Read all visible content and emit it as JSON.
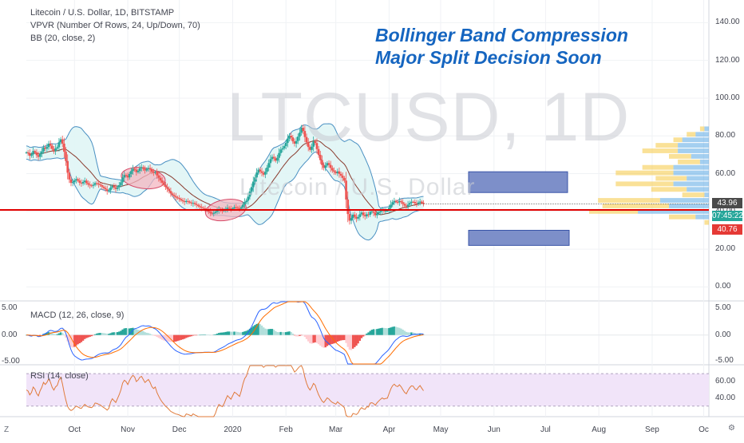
{
  "header": {
    "symbol_line": "Litecoin / U.S. Dollar, 1D, BITSTAMP",
    "vpvr_line": "VPVR (Number Of Rows, 24, Up/Down, 70)",
    "bb_line": "BB (20, close, 2)"
  },
  "annotation": {
    "line1": "Bollinger Band Compression",
    "line2": "Major Split Decision Soon"
  },
  "watermark": {
    "ticker": "LTCUSD, 1D",
    "name": "Litecoin / U.S. Dollar"
  },
  "panes": {
    "macd_label": "MACD (12, 26, close, 9)",
    "rsi_label": "RSI (14, close)"
  },
  "price_tags": {
    "last": "43.96",
    "countdown": "07:45:22",
    "support": "40.76"
  },
  "corners": {
    "left": "Z",
    "right": "⚙"
  },
  "colors": {
    "up": "#26a69a",
    "down": "#ef5350",
    "support_line": "#e00000",
    "band_fill": "#e0f5f5",
    "band_line": "#4a90c2",
    "basis": "#8a3b2e",
    "ellipse_fill": "#f3b6c0",
    "ellipse_stroke": "#d64b68",
    "target_box": "#7d8fc9",
    "vp_up": "#5aa7e4",
    "vp_down": "#f5c842",
    "macd_line": "#2962ff",
    "signal_line": "#ff6d00",
    "rsi_line": "#e07a3a",
    "rsi_band": "#f1e4f9",
    "countdown_tag": "#26a69a",
    "last_tag": "#4a4a4a",
    "support_tag": "#e53935",
    "annotation_text": "#1565c0"
  },
  "chart_data": [
    {
      "type": "candlestick",
      "title": "Litecoin / U.S. Dollar, 1D, BITSTAMP",
      "y_axis_ticks": [
        0,
        20,
        40,
        60,
        80,
        100,
        120,
        140
      ],
      "y_axis_labels": [
        "0.00",
        "20.00",
        "40.00",
        "60.00",
        "80.00",
        "100.00",
        "120.00",
        "140.00"
      ],
      "ylim": [
        -7,
        152
      ],
      "x_axis_labels": [
        "Oct",
        "Nov",
        "Dec",
        "2020",
        "Feb",
        "Mar",
        "Apr",
        "May",
        "Jun",
        "Jul",
        "Aug",
        "Sep",
        "Oc"
      ],
      "xlim": [
        "2019-09-03",
        "2020-10-04"
      ],
      "month_starts": [
        "2019-10-01",
        "2019-11-01",
        "2019-12-01",
        "2020-01-01",
        "2020-02-01",
        "2020-03-01",
        "2020-04-01",
        "2020-05-01",
        "2020-06-01",
        "2020-07-01",
        "2020-08-01",
        "2020-09-01",
        "2020-10-01"
      ],
      "data_start_date": "2019-09-03",
      "close": [
        71.2,
        70.8,
        69.5,
        70.2,
        72.0,
        71.3,
        69.8,
        68.9,
        70.5,
        71.8,
        73.9,
        73.2,
        74.1,
        75.9,
        74.8,
        73.1,
        72.0,
        73.3,
        74.0,
        76.6,
        78.2,
        75.9,
        71.6,
        66.7,
        60.5,
        56.9,
        55.1,
        55.5,
        56.4,
        57.1,
        56.3,
        55.2,
        54.8,
        55.6,
        56.3,
        55.0,
        54.2,
        53.8,
        53.6,
        54.1,
        55.0,
        54.8,
        54.3,
        53.9,
        53.1,
        52.4,
        51.7,
        50.8,
        51.2,
        52.6,
        53.5,
        52.7,
        51.9,
        52.8,
        53.9,
        55.4,
        58.0,
        59.3,
        58.9,
        58.0,
        59.8,
        61.4,
        62.6,
        62.1,
        60.8,
        61.5,
        62.9,
        63.4,
        62.6,
        61.7,
        62.4,
        63.0,
        62.2,
        61.0,
        60.4,
        60.9,
        59.1,
        57.8,
        56.4,
        55.2,
        54.1,
        52.9,
        52.0,
        50.8,
        49.5,
        48.7,
        48.0,
        47.4,
        47.1,
        46.6,
        45.9,
        45.4,
        45.0,
        45.5,
        45.2,
        44.7,
        44.2,
        44.5,
        43.9,
        43.4,
        42.8,
        42.3,
        41.9,
        41.6,
        41.2,
        40.5,
        39.9,
        39.3,
        38.8,
        39.2,
        39.8,
        40.5,
        41.0,
        40.6,
        40.3,
        40.7,
        41.3,
        41.9,
        41.5,
        41.1,
        41.6,
        42.2,
        42.0,
        41.7,
        41.4,
        42.2,
        43.6,
        44.9,
        45.7,
        47.8,
        50.6,
        52.9,
        55.8,
        58.0,
        60.6,
        62.1,
        61.2,
        60.4,
        59.5,
        61.0,
        63.2,
        65.6,
        67.7,
        68.9,
        68.1,
        66.9,
        68.4,
        70.9,
        72.8,
        73.4,
        74.6,
        76.3,
        78.5,
        80.1,
        79.2,
        77.1,
        75.9,
        77.3,
        79.6,
        81.7,
        84.3,
        82.6,
        79.4,
        76.6,
        74.1,
        72.6,
        74.3,
        77.1,
        76.2,
        73.0,
        70.0,
        67.2,
        64.6,
        63.1,
        64.3,
        65.6,
        64.6,
        63.0,
        61.7,
        61.0,
        60.2,
        61.2,
        59.9,
        58.9,
        57.7,
        56.3,
        46.3,
        38.6,
        35.1,
        36.5,
        38.3,
        37.1,
        36.2,
        37.0,
        38.5,
        39.4,
        38.0,
        37.4,
        38.5,
        38.2,
        39.8,
        40.0,
        39.3,
        38.0,
        38.9,
        39.6,
        40.2,
        40.7,
        40.1,
        40.3,
        40.4,
        41.9,
        43.6,
        44.9,
        45.6,
        45.0,
        44.8,
        45.5,
        44.9,
        44.0,
        43.1,
        42.6,
        43.6,
        44.5,
        45.1,
        45.0,
        44.3,
        44.0,
        44.7,
        45.2,
        44.6,
        43.96
      ]
    },
    {
      "type": "line",
      "title": "MACD (12, 26, close, 9)",
      "y_axis_ticks": [
        -5,
        0,
        5
      ],
      "y_axis_labels": [
        "-5.00",
        "0.00",
        "5.00"
      ],
      "ylim": [
        -5.4,
        6.2
      ]
    },
    {
      "type": "line",
      "title": "RSI (14, close)",
      "y_axis_ticks": [
        40,
        60
      ],
      "y_axis_labels": [
        "40.00",
        "60.00"
      ],
      "ylim": [
        17,
        80
      ],
      "band": [
        30,
        70
      ]
    }
  ]
}
